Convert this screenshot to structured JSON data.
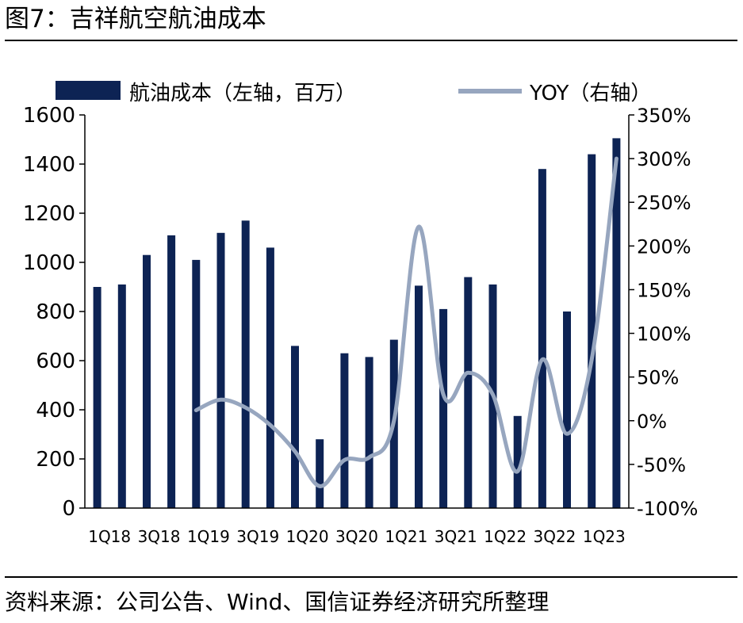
{
  "figure_label": "图7：吉祥航空航油成本",
  "source_text": "资料来源：公司公告、Wind、国信证券经济研究所整理",
  "colors": {
    "bar": "#0d2354",
    "line": "#97a6bf",
    "axis": "#000000"
  },
  "chart_data": {
    "type": "bar",
    "title": "",
    "legend_position": "top",
    "grid": false,
    "categories": [
      "1Q18",
      "2Q18",
      "3Q18",
      "4Q18",
      "1Q19",
      "2Q19",
      "3Q19",
      "4Q19",
      "1Q20",
      "2Q20",
      "3Q20",
      "4Q20",
      "1Q21",
      "2Q21",
      "3Q21",
      "4Q21",
      "1Q22",
      "2Q22",
      "3Q22",
      "4Q22",
      "1Q23",
      "2Q23"
    ],
    "x_tick_labels": [
      "1Q18",
      "",
      "3Q18",
      "",
      "1Q19",
      "",
      "3Q19",
      "",
      "1Q20",
      "",
      "3Q20",
      "",
      "1Q21",
      "",
      "3Q21",
      "",
      "1Q22",
      "",
      "3Q22",
      "",
      "1Q23",
      ""
    ],
    "y_left": {
      "min": 0,
      "max": 1600,
      "ticks": [
        "0",
        "200",
        "400",
        "600",
        "800",
        "1000",
        "1200",
        "1400",
        "1600"
      ]
    },
    "y_right": {
      "min": -100,
      "max": 350,
      "ticks": [
        "-100%",
        "-50%",
        "0%",
        "50%",
        "100%",
        "150%",
        "200%",
        "250%",
        "300%",
        "350%"
      ]
    },
    "series": [
      {
        "name": "航油成本（左轴，百万）",
        "kind": "bar",
        "axis": "left",
        "values": [
          900,
          910,
          1030,
          1110,
          1010,
          1120,
          1170,
          1060,
          660,
          280,
          630,
          615,
          685,
          905,
          810,
          940,
          910,
          375,
          1380,
          800,
          1440,
          1505
        ]
      },
      {
        "name": "YOY（右轴）",
        "kind": "line",
        "axis": "right",
        "values": [
          null,
          null,
          null,
          null,
          12,
          24,
          15,
          -5,
          -35,
          -75,
          -45,
          -42,
          0,
          222,
          30,
          55,
          30,
          -58,
          70,
          -15,
          70,
          300
        ]
      }
    ]
  }
}
